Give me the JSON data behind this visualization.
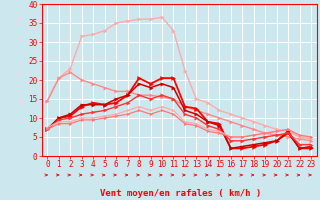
{
  "title": "",
  "xlabel": "Vent moyen/en rafales ( km/h )",
  "bg_color": "#cce8ee",
  "grid_color": "#ffffff",
  "x_values": [
    0,
    1,
    2,
    3,
    4,
    5,
    6,
    7,
    8,
    9,
    10,
    11,
    12,
    13,
    14,
    15,
    16,
    17,
    18,
    19,
    20,
    21,
    22,
    23
  ],
  "series": [
    {
      "color": "#ffaaaa",
      "linewidth": 1.0,
      "markersize": 2.5,
      "data": [
        14.5,
        20.5,
        23,
        31.5,
        32,
        33,
        35,
        35.5,
        36,
        36,
        36.5,
        33,
        22.5,
        15,
        14,
        12,
        11,
        10,
        9,
        8,
        7,
        6.5,
        5,
        4.5
      ]
    },
    {
      "color": "#ff8888",
      "linewidth": 1.0,
      "markersize": 2.5,
      "data": [
        14.5,
        20.5,
        22,
        20,
        19,
        18,
        17,
        17,
        16,
        16,
        15.5,
        15,
        13,
        12,
        11,
        10,
        9,
        8,
        7,
        6,
        5.5,
        5,
        4.5,
        4
      ]
    },
    {
      "color": "#ff0000",
      "linewidth": 1.3,
      "markersize": 3.0,
      "data": [
        7,
        10,
        10.5,
        13,
        14,
        13.5,
        14,
        16,
        20.5,
        19,
        20.5,
        20.5,
        13,
        12.5,
        9,
        8.5,
        2,
        2,
        2.5,
        3,
        4,
        6.5,
        2,
        2
      ]
    },
    {
      "color": "#cc0000",
      "linewidth": 1.1,
      "markersize": 2.5,
      "data": [
        7,
        10,
        11,
        13.5,
        13.5,
        13.5,
        15,
        16,
        19,
        18,
        19,
        18,
        12,
        11,
        9,
        8,
        2,
        2.5,
        3,
        3.5,
        4,
        6,
        2,
        2.5
      ]
    },
    {
      "color": "#ff3333",
      "linewidth": 1.0,
      "markersize": 2.5,
      "data": [
        7,
        9.5,
        10,
        11,
        11.5,
        12,
        13,
        14,
        16,
        15,
        16,
        15,
        11,
        10,
        8,
        7,
        4,
        4,
        4.5,
        5,
        5.5,
        6,
        3,
        3
      ]
    },
    {
      "color": "#ffaaaa",
      "linewidth": 0.9,
      "markersize": 2.0,
      "data": [
        7.5,
        9,
        9,
        10,
        10,
        10.5,
        11,
        12,
        13,
        12,
        13,
        12,
        9,
        8.5,
        7,
        6.5,
        5,
        5,
        5.5,
        6,
        6.5,
        7,
        5,
        5
      ]
    },
    {
      "color": "#ff7777",
      "linewidth": 0.9,
      "markersize": 2.0,
      "data": [
        7,
        8.5,
        8.5,
        9.5,
        9.5,
        10,
        10.5,
        11,
        12,
        11,
        12,
        11,
        8.5,
        8,
        6.5,
        6,
        5,
        5,
        5.5,
        6,
        6.5,
        7,
        5.5,
        5
      ]
    }
  ],
  "ylim": [
    0,
    40
  ],
  "yticks": [
    0,
    5,
    10,
    15,
    20,
    25,
    30,
    35,
    40
  ],
  "xticks": [
    0,
    1,
    2,
    3,
    4,
    5,
    6,
    7,
    8,
    9,
    10,
    11,
    12,
    13,
    14,
    15,
    16,
    17,
    18,
    19,
    20,
    21,
    22,
    23
  ],
  "tick_color": "#ff0000",
  "label_color": "#ff0000",
  "xlabel_fontsize": 6.5,
  "tick_fontsize": 5.5
}
